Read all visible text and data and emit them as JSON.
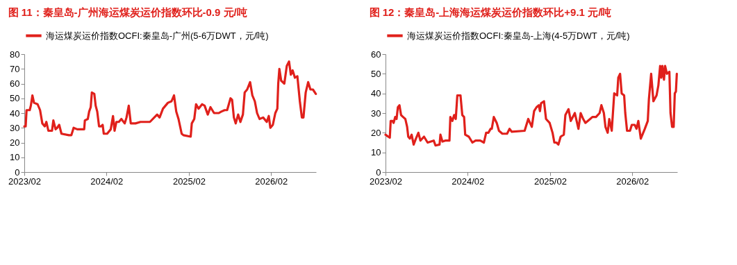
{
  "chart_data": [
    {
      "type": "line",
      "title": "图 11：秦皇岛-广州海运煤炭运价指数环比-0.9 元/吨",
      "legend": "top left",
      "grid": false,
      "marker": "none",
      "line_style": "solid",
      "xlim": [
        "2023-02-01",
        "2026-08-20"
      ],
      "xticks": [
        {
          "value": "2023-02-01",
          "label": "2023/02"
        },
        {
          "value": "2024-02-01",
          "label": "2024/02"
        },
        {
          "value": "2025-02-01",
          "label": "2025/02"
        },
        {
          "value": "2026-02-01",
          "label": "2026/02"
        }
      ],
      "ylim": [
        0,
        80
      ],
      "yticks": [
        0,
        10,
        20,
        30,
        40,
        50,
        60,
        70,
        80
      ],
      "x": [
        "2023-02-01",
        "2023-02-07",
        "2023-02-11",
        "2023-02-25",
        "2023-03-02",
        "2023-03-09",
        "2023-03-16",
        "2023-04-01",
        "2023-04-12",
        "2023-04-22",
        "2023-05-03",
        "2023-05-10",
        "2023-05-19",
        "2023-06-04",
        "2023-06-10",
        "2023-06-20",
        "2023-06-27",
        "2023-07-06",
        "2023-07-16",
        "2023-08-18",
        "2023-08-29",
        "2023-09-08",
        "2023-09-24",
        "2023-10-25",
        "2023-10-28",
        "2023-11-10",
        "2023-11-16",
        "2023-11-23",
        "2023-11-28",
        "2023-12-09",
        "2023-12-15",
        "2023-12-22",
        "2023-12-30",
        "2024-01-08",
        "2024-01-15",
        "2024-01-20",
        "2024-02-04",
        "2024-02-20",
        "2024-03-01",
        "2024-03-08",
        "2024-03-16",
        "2024-03-27",
        "2024-04-07",
        "2024-04-22",
        "2024-04-30",
        "2024-05-10",
        "2024-05-19",
        "2024-06-09",
        "2024-07-01",
        "2024-08-12",
        "2024-09-13",
        "2024-09-24",
        "2024-10-09",
        "2024-10-31",
        "2024-11-16",
        "2024-11-27",
        "2024-12-07",
        "2024-12-17",
        "2024-12-31",
        "2025-01-08",
        "2025-02-09",
        "2025-02-14",
        "2025-02-25",
        "2025-03-05",
        "2025-03-16",
        "2025-04-01",
        "2025-04-12",
        "2025-04-26",
        "2025-05-08",
        "2025-05-24",
        "2025-06-14",
        "2025-06-25",
        "2025-07-10",
        "2025-07-21",
        "2025-08-05",
        "2025-08-12",
        "2025-08-20",
        "2025-08-28",
        "2025-09-08",
        "2025-09-18",
        "2025-09-29",
        "2025-10-07",
        "2025-10-18",
        "2025-10-31",
        "2025-11-10",
        "2025-11-21",
        "2025-12-01",
        "2025-12-12",
        "2025-12-28",
        "2026-01-13",
        "2026-01-22",
        "2026-01-29",
        "2026-02-09",
        "2026-02-20",
        "2026-03-01",
        "2026-03-05",
        "2026-03-10",
        "2026-03-18",
        "2026-04-01",
        "2026-04-12",
        "2026-04-22",
        "2026-04-30",
        "2026-05-08",
        "2026-05-18",
        "2026-05-29",
        "2026-06-09",
        "2026-06-18",
        "2026-06-25",
        "2026-07-05",
        "2026-07-16",
        "2026-07-26",
        "2026-08-06",
        "2026-08-19"
      ],
      "series": [
        {
          "name": "海运煤炭运价指数OCFI:秦皇岛-广州(5-6万DWT，元/吨)",
          "color": "#e0201b",
          "values": [
            31,
            31,
            42,
            42,
            45,
            52,
            47,
            46,
            42,
            33,
            31,
            34,
            28,
            28,
            35,
            29,
            30,
            32,
            26,
            25,
            25,
            30,
            29,
            29,
            35,
            36,
            41,
            44,
            54,
            53,
            45,
            41,
            31,
            31,
            32,
            26,
            26,
            29,
            38,
            28,
            34,
            34,
            36,
            33,
            37,
            45,
            33,
            33,
            34,
            34,
            39,
            37,
            43,
            47,
            48,
            52,
            41,
            36,
            26,
            25,
            24,
            33,
            36,
            46,
            43,
            46,
            45,
            39,
            44,
            40,
            40,
            41,
            42,
            42,
            50,
            49,
            37,
            33,
            39,
            34,
            39,
            54,
            56,
            61,
            52,
            48,
            40,
            36,
            37,
            34,
            38,
            30,
            32,
            40,
            43,
            60,
            70,
            62,
            60,
            72,
            75,
            66,
            69,
            64,
            65,
            48,
            37,
            37,
            54,
            61,
            56,
            56,
            53
          ]
        }
      ]
    },
    {
      "type": "line",
      "title": "图 12：秦皇岛-上海海运煤炭运价指数环比+9.1 元/吨",
      "legend": "top left",
      "grid": false,
      "marker": "none",
      "line_style": "solid",
      "xlim": [
        "2023-02-01",
        "2026-08-20"
      ],
      "xticks": [
        {
          "value": "2023-02-01",
          "label": "2023/02"
        },
        {
          "value": "2024-02-01",
          "label": "2024/02"
        },
        {
          "value": "2025-02-01",
          "label": "2025/02"
        },
        {
          "value": "2026-02-01",
          "label": "2026/02"
        }
      ],
      "ylim": [
        0,
        60
      ],
      "yticks": [
        0,
        10,
        20,
        30,
        40,
        50,
        60
      ],
      "x": [
        "2023-02-01",
        "2023-02-13",
        "2023-02-20",
        "2023-02-24",
        "2023-03-04",
        "2023-03-09",
        "2023-03-16",
        "2023-03-22",
        "2023-03-28",
        "2023-04-04",
        "2023-04-11",
        "2023-04-20",
        "2023-04-30",
        "2023-05-08",
        "2023-05-13",
        "2023-05-20",
        "2023-05-28",
        "2023-06-06",
        "2023-06-16",
        "2023-06-27",
        "2023-07-06",
        "2023-07-22",
        "2023-08-07",
        "2023-09-03",
        "2023-09-11",
        "2023-09-29",
        "2023-10-03",
        "2023-10-12",
        "2023-10-24",
        "2023-11-12",
        "2023-11-16",
        "2023-11-25",
        "2023-12-03",
        "2023-12-10",
        "2023-12-17",
        "2023-12-31",
        "2024-01-08",
        "2024-01-16",
        "2024-01-21",
        "2024-02-06",
        "2024-02-22",
        "2024-03-07",
        "2024-03-28",
        "2024-04-13",
        "2024-04-23",
        "2024-05-03",
        "2024-05-13",
        "2024-05-18",
        "2024-05-27",
        "2024-06-09",
        "2024-06-19",
        "2024-07-04",
        "2024-07-25",
        "2024-08-05",
        "2024-08-15",
        "2024-10-11",
        "2024-10-27",
        "2024-11-12",
        "2024-11-22",
        "2024-12-03",
        "2024-12-13",
        "2024-12-18",
        "2024-12-23",
        "2025-01-05",
        "2025-01-14",
        "2025-01-30",
        "2025-02-12",
        "2025-02-20",
        "2025-03-01",
        "2025-03-10",
        "2025-03-20",
        "2025-04-03",
        "2025-04-10",
        "2025-04-24",
        "2025-05-04",
        "2025-05-22",
        "2025-06-07",
        "2025-06-17",
        "2025-06-28",
        "2025-07-08",
        "2025-07-29",
        "2025-08-08",
        "2025-08-24",
        "2025-09-09",
        "2025-09-17",
        "2025-09-28",
        "2025-10-05",
        "2025-10-15",
        "2025-10-22",
        "2025-11-02",
        "2025-11-13",
        "2025-11-26",
        "2025-12-01",
        "2025-12-09",
        "2025-12-16",
        "2025-12-27",
        "2026-01-01",
        "2026-01-09",
        "2026-01-22",
        "2026-01-30",
        "2026-02-12",
        "2026-02-20",
        "2026-02-28",
        "2026-03-11",
        "2026-03-29",
        "2026-04-11",
        "2026-04-16",
        "2026-04-26",
        "2026-05-06",
        "2026-05-20",
        "2026-05-28",
        "2026-06-05",
        "2026-06-10",
        "2026-06-15",
        "2026-06-22",
        "2026-06-27",
        "2026-07-05",
        "2026-07-16",
        "2026-07-21",
        "2026-07-28",
        "2026-08-04",
        "2026-08-09",
        "2026-08-14",
        "2026-08-18"
      ],
      "series": [
        {
          "name": "海运煤炭运价指数OCFI:秦皇岛-上海(4-5万DWT，元/吨)",
          "color": "#e0201b",
          "values": [
            19,
            18,
            17.5,
            26,
            26,
            25,
            28,
            27,
            33,
            34,
            29,
            28,
            27,
            23,
            18,
            17,
            19,
            14,
            17,
            20,
            16,
            18,
            15,
            16,
            13.5,
            14,
            19,
            15.5,
            16,
            16,
            28,
            26,
            29,
            27,
            39,
            39,
            29,
            28,
            19,
            18,
            15,
            16,
            16,
            15,
            20,
            20,
            22,
            22,
            28,
            25,
            21,
            19.5,
            19.5,
            22,
            20.5,
            21,
            27,
            23,
            31,
            33,
            34,
            31,
            35,
            36,
            27,
            25,
            20,
            15,
            15,
            14,
            18,
            19,
            29,
            32,
            26,
            30,
            22,
            30,
            27,
            25,
            27,
            28,
            28,
            30,
            34,
            30,
            23,
            20,
            27,
            21,
            40,
            39,
            48,
            50,
            40,
            39,
            30,
            21,
            21,
            24,
            24,
            22,
            26,
            17,
            22,
            26,
            37,
            50,
            36,
            39,
            44,
            54,
            48,
            54,
            47,
            54,
            50,
            51,
            30,
            23,
            23,
            40,
            41,
            50
          ]
        }
      ]
    }
  ]
}
